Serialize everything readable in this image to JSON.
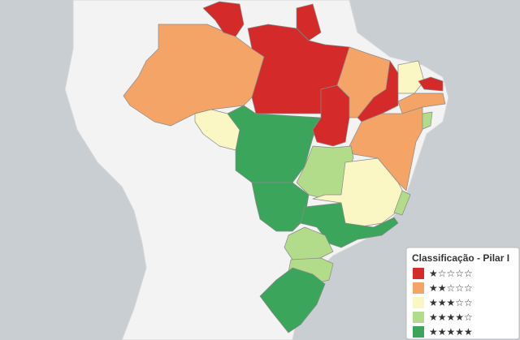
{
  "legend": {
    "title": "Classificação - Pilar I",
    "items": [
      {
        "label": "★☆☆☆☆",
        "color": "#d42a2a"
      },
      {
        "label": "★★☆☆☆",
        "color": "#f4a466"
      },
      {
        "label": "★★★☆☆",
        "color": "#fbf7c4"
      },
      {
        "label": "★★★★☆",
        "color": "#b3dc8a"
      },
      {
        "label": "★★★★★",
        "color": "#3ba55c"
      }
    ]
  }
}
